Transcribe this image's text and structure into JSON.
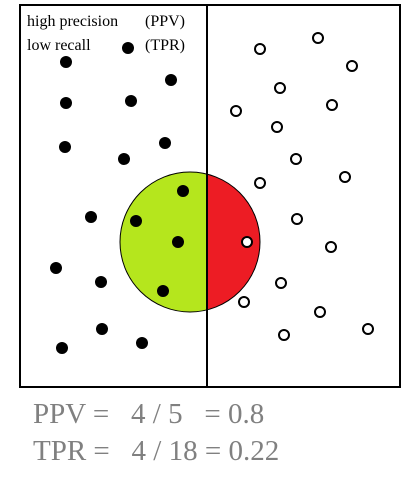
{
  "labels": {
    "line1_left": "high precision",
    "line1_right": "(PPV)",
    "line2_left": "low  recall",
    "line2_right": "(TPR)"
  },
  "metrics": {
    "ppv": "PPV =   4 / 5   = 0.8",
    "tpr": "TPR =   4 / 18 = 0.22"
  },
  "colors": {
    "true_positive_region": "#b5e61d",
    "false_positive_region": "#ed1c24",
    "relevant_dot": "#000000",
    "irrelevant_dot": "#ffffff",
    "frame": "#000000",
    "metric_text": "#808080"
  },
  "counts": {
    "relevant_total": 18,
    "selected_total": 5,
    "true_positives": 4,
    "false_positives": 1
  }
}
